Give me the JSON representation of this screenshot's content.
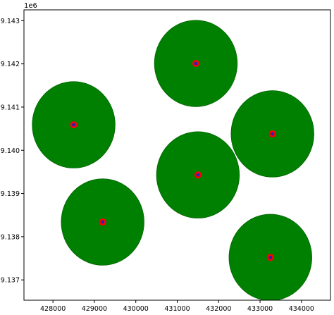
{
  "chart_data": {
    "type": "scatter",
    "title": "",
    "xlabel": "",
    "ylabel": "",
    "y_offset_label": "1e6",
    "xlim": [
      427300,
      434700
    ],
    "ylim": [
      9.13653,
      9.14325
    ],
    "x_ticks": [
      428000,
      429000,
      430000,
      431000,
      432000,
      433000,
      434000
    ],
    "x_tick_labels": [
      "428000",
      "429000",
      "430000",
      "431000",
      "432000",
      "433000",
      "434000"
    ],
    "y_ticks": [
      9.137,
      9.138,
      9.139,
      9.14,
      9.141,
      9.142,
      9.143
    ],
    "y_tick_labels": [
      "9.137",
      "9.138",
      "9.139",
      "9.140",
      "9.141",
      "9.142",
      "9.143"
    ],
    "grid": false,
    "buffer_radius": 1000,
    "colors": {
      "buffer_fill": "#008000",
      "buffer_edge": "#006400",
      "marker_ring": "#ff0000",
      "marker_center": "#2020c0"
    },
    "points": [
      {
        "x": 428500,
        "y": 9.14059
      },
      {
        "x": 431450,
        "y": 9.14201
      },
      {
        "x": 433300,
        "y": 9.14038
      },
      {
        "x": 431500,
        "y": 9.13943
      },
      {
        "x": 429200,
        "y": 9.13834
      },
      {
        "x": 433250,
        "y": 9.13752
      }
    ]
  }
}
